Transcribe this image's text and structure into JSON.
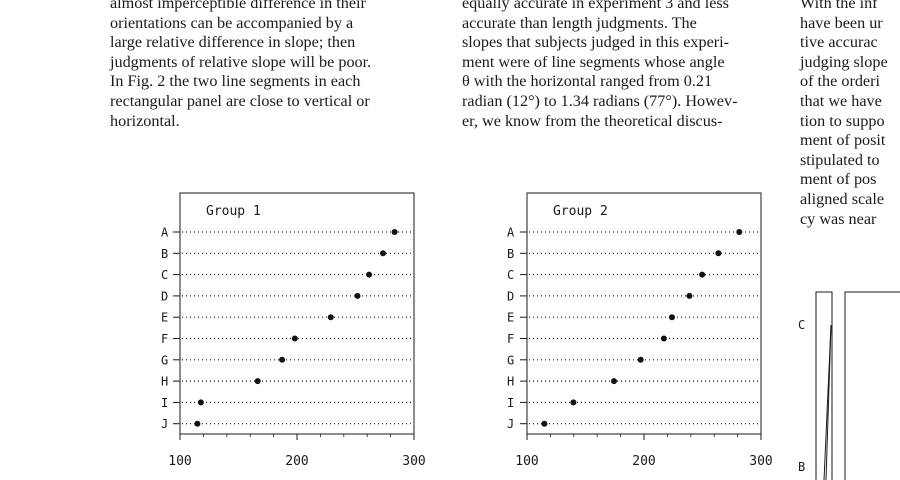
{
  "text_columns": {
    "left": [
      "almost imperceptible difference in their",
      "orientations can be accompanied by a",
      "large relative difference in slope; then",
      "judgments of relative slope will be poor.",
      "In Fig. 2 the two line segments in each",
      "rectangular panel are close to vertical or",
      "horizontal."
    ],
    "middle": [
      "equally accurate in experiment 3 and less",
      "accurate than length judgments. The",
      "slopes that subjects judged in this experi-",
      "ment were of line segments whose angle",
      "θ with the horizontal ranged from 0.21",
      "radian (12°) to 1.34 radians (77°). Howev-",
      "er, we know from the theoretical discus-"
    ],
    "right": [
      "With the inf",
      "have been ur",
      "tive accurac",
      "judging slope",
      "of the orderi",
      "that we have",
      "tion to suppo",
      "ment of posit",
      "stipulated to",
      "ment of pos",
      "aligned scale",
      "cy was near"
    ]
  },
  "right_figure_labels": [
    "C",
    "B"
  ],
  "chart_data": [
    {
      "type": "scatter",
      "title": "Group 1",
      "categories": [
        "A",
        "B",
        "C",
        "D",
        "E",
        "F",
        "G",
        "H",
        "I",
        "J"
      ],
      "values": [
        285,
        275,
        263,
        253,
        230,
        199,
        188,
        167,
        118,
        115
      ],
      "xlim": [
        100,
        300
      ],
      "xticks": [
        "100",
        "200",
        "300"
      ],
      "grid": "dotted horizontal lines"
    },
    {
      "type": "scatter",
      "title": "Group 2",
      "categories": [
        "A",
        "B",
        "C",
        "D",
        "E",
        "F",
        "G",
        "H",
        "I",
        "J"
      ],
      "values": [
        283,
        265,
        251,
        240,
        225,
        218,
        198,
        175,
        140,
        115
      ],
      "xlim": [
        100,
        300
      ],
      "xticks": [
        "100",
        "200",
        "300"
      ],
      "grid": "dotted horizontal lines"
    }
  ]
}
